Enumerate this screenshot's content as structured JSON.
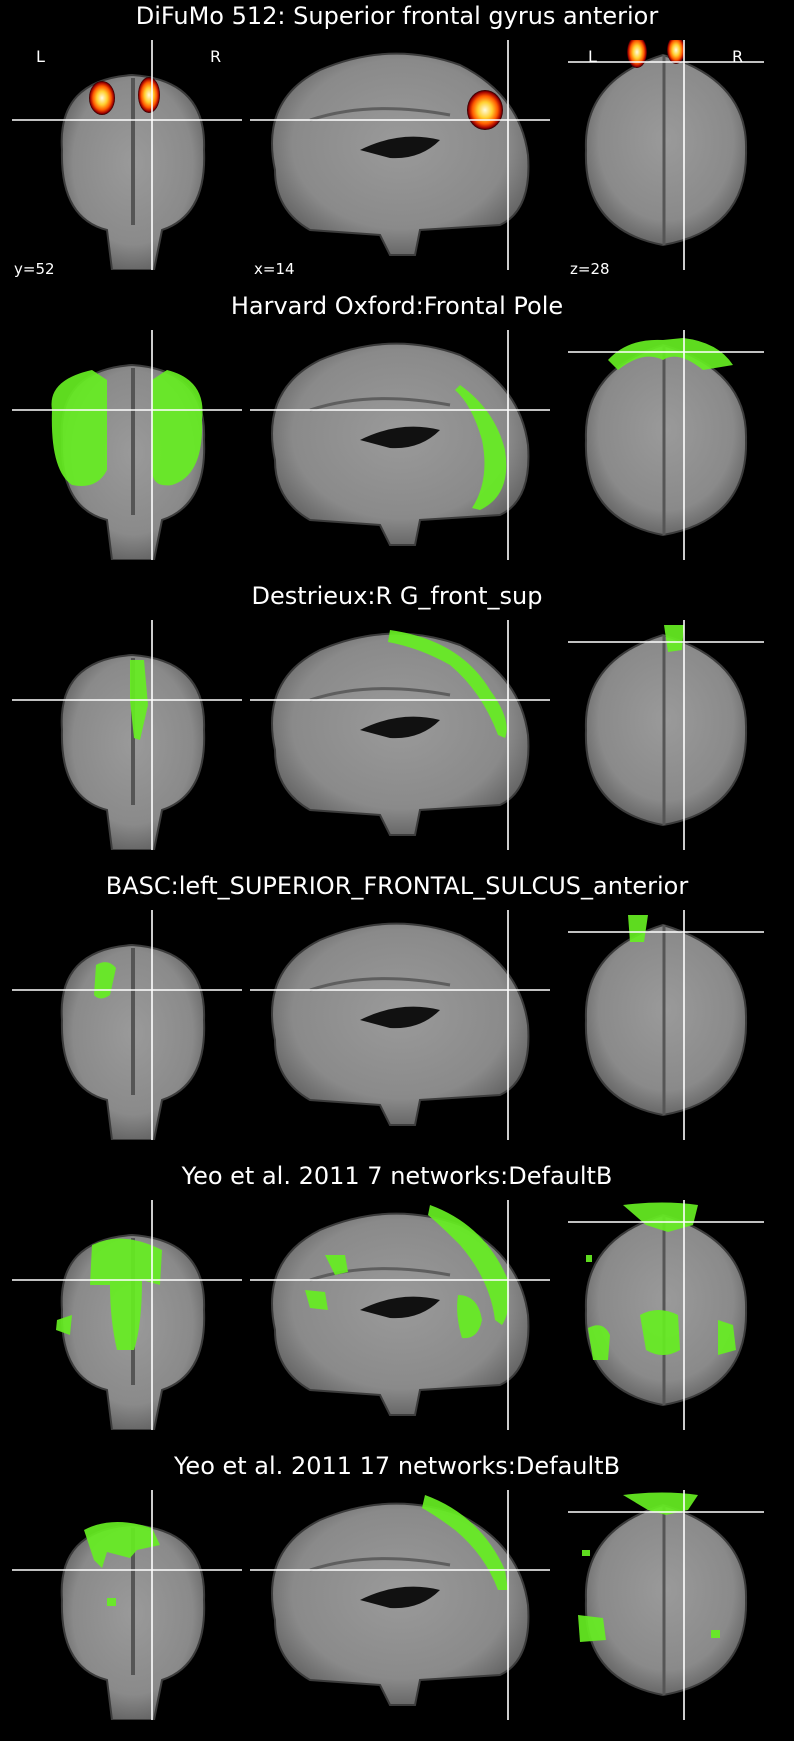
{
  "orientation": {
    "left": "L",
    "right": "R"
  },
  "coords": {
    "y": "y=52",
    "x": "x=14",
    "z": "z=28"
  },
  "colors": {
    "background": "#000000",
    "overlay_green": "#66ee22",
    "crosshair": "#ffffff",
    "blob_hot": "#ffe040"
  },
  "panels": [
    {
      "title": "DiFuMo 512: Superior frontal gyrus anterior",
      "overlay": "hot"
    },
    {
      "title": "Harvard Oxford:Frontal Pole",
      "overlay": "green"
    },
    {
      "title": "Destrieux:R G_front_sup",
      "overlay": "green"
    },
    {
      "title": "BASC:left_SUPERIOR_FRONTAL_SULCUS_anterior",
      "overlay": "green"
    },
    {
      "title": "Yeo et al. 2011 7 networks:DefaultB",
      "overlay": "green"
    },
    {
      "title": "Yeo et al. 2011 17 networks:DefaultB",
      "overlay": "green"
    }
  ]
}
